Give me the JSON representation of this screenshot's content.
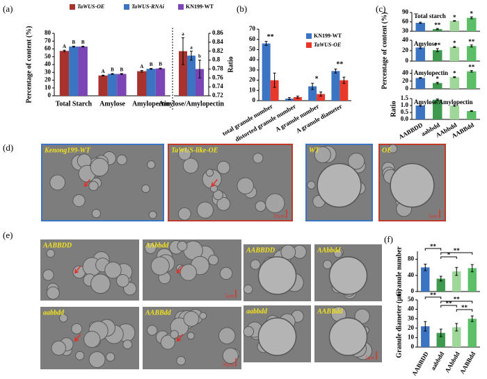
{
  "panels": [
    "(a)",
    "(b)",
    "(c)",
    "(d)",
    "(e)",
    "(f)"
  ],
  "chart_data": [
    {
      "type": "bar",
      "ylabel": "Percentage of content (%)",
      "categories": [
        "Total Starch",
        "Amylose",
        "Amylopectin"
      ],
      "series": [
        {
          "name": "TaWUS-OE",
          "color": "#a8322d",
          "values": [
            57.5,
            26,
            31.5
          ],
          "errors": [
            1,
            0.5,
            1
          ],
          "letters": [
            "A",
            "A",
            "A"
          ]
        },
        {
          "name": "TaWUS-RNAi",
          "color": "#3c74c4",
          "values": [
            63,
            28,
            34.5
          ],
          "errors": [
            0.5,
            0.5,
            0.5
          ],
          "letters": [
            "B",
            "B",
            "B"
          ]
        },
        {
          "name": "KN199-WT",
          "color": "#7b45b5",
          "values": [
            63,
            28,
            35
          ],
          "errors": [
            0.5,
            0.5,
            0.5
          ],
          "letters": [
            "B",
            "B",
            "B"
          ]
        }
      ],
      "ylim": [
        0,
        80
      ],
      "yticks": [
        0,
        10,
        20,
        30,
        40,
        50,
        60,
        70,
        80
      ]
    },
    {
      "type": "bar",
      "ylabel": "Ratio",
      "categories": [
        "Amylose/Amylopectin"
      ],
      "series": [
        {
          "color": "#a8322d",
          "values": [
            0.82
          ],
          "errors": [
            0.03
          ],
          "letters": [
            "a"
          ],
          "axis": "y2"
        },
        {
          "color": "#3c74c4",
          "values": [
            0.81
          ],
          "errors": [
            0.01
          ],
          "letters": [
            "a"
          ],
          "axis": "y2"
        },
        {
          "color": "#7b45b5",
          "values": [
            0.78
          ],
          "errors": [
            0.02
          ],
          "letters": [
            "b"
          ],
          "axis": "y2"
        }
      ],
      "y2lim": [
        0.72,
        0.86
      ],
      "y2ticks": [
        0.72,
        0.74,
        0.76,
        0.78,
        0.8,
        0.82,
        0.84,
        0.86
      ]
    },
    {
      "type": "bar",
      "categories": [
        "total granule number",
        "distorted granule number",
        "A granule number",
        "A granule diameter"
      ],
      "series": [
        {
          "name": "KN199-WT",
          "color": "#3c74c4",
          "values": [
            56,
            2,
            14,
            29
          ],
          "errors": [
            2,
            1,
            3,
            2
          ]
        },
        {
          "name": "TaWUS-OE",
          "color": "#e8382c",
          "values": [
            20,
            3.5,
            6.5,
            20
          ],
          "errors": [
            7,
            1,
            2,
            3
          ]
        }
      ],
      "annotations": [
        "**",
        null,
        "*",
        "**"
      ],
      "ylim": [
        0,
        70
      ],
      "yticks": [
        0,
        10,
        20,
        30,
        40,
        50,
        60,
        70
      ]
    },
    {
      "type": "bar",
      "title": "Total starch",
      "ylabel": "Percentage of content (%)",
      "colors": [
        "#3c74c4",
        "#3e9a4e",
        "#9fd69a",
        "#5cbf68"
      ],
      "values": [
        57,
        37,
        63,
        73
      ],
      "errors": [
        2,
        2,
        1,
        3
      ],
      "annotations": [
        null,
        "**",
        "*",
        "*"
      ],
      "ylim": [
        30,
        90
      ],
      "yticks": [
        30,
        60,
        90
      ]
    },
    {
      "type": "bar",
      "title": "Amylose",
      "colors": [
        "#3c74c4",
        "#3e9a4e",
        "#9fd69a",
        "#5cbf68"
      ],
      "values": [
        26,
        21,
        27,
        29
      ],
      "errors": [
        2,
        3,
        1,
        2
      ],
      "annotations": [
        null,
        "**",
        "*",
        "**"
      ],
      "ylim": [
        0,
        40
      ],
      "yticks": [
        0,
        20,
        40
      ]
    },
    {
      "type": "bar",
      "title": "Amylopectin",
      "colors": [
        "#3c74c4",
        "#3e9a4e",
        "#9fd69a",
        "#5cbf68"
      ],
      "values": [
        28,
        15,
        30,
        45
      ],
      "errors": [
        1,
        2,
        1,
        2
      ],
      "annotations": [
        null,
        "*",
        "*",
        "**"
      ],
      "ylim": [
        0,
        50
      ],
      "yticks": [
        0,
        20,
        40
      ]
    },
    {
      "type": "bar",
      "title": "Amylose/Amylopectin",
      "ylabel": "Ratio",
      "categories": [
        "AABBDD",
        "aabbdd",
        "AAbbdd",
        "AABBdd"
      ],
      "colors": [
        "#3c74c4",
        "#3e9a4e",
        "#9fd69a",
        "#5cbf68"
      ],
      "values": [
        1.0,
        1.42,
        1.0,
        0.6
      ],
      "errors": [
        0.05,
        0.05,
        0.05,
        0.03
      ],
      "ylim": [
        0,
        1.5
      ],
      "yticks": [
        {
          "value": 0,
          "label": "0.0"
        },
        0.5,
        {
          "value": 1,
          "label": "1.0"
        },
        1.5
      ]
    },
    {
      "type": "bar",
      "ylabel": "Granule number",
      "colors": [
        "#3c74c4",
        "#3e9a4e",
        "#9fd69a",
        "#5cbf68"
      ],
      "values": [
        60,
        32,
        50,
        58
      ],
      "errors": [
        8,
        6,
        10,
        9
      ],
      "brackets": [
        {
          "from": 0,
          "to": 1,
          "label": "**"
        },
        {
          "from": 1,
          "to": 3,
          "label": "**"
        },
        {
          "from": 1,
          "to": 2,
          "label": "*"
        }
      ],
      "ylim": [
        0,
        100
      ],
      "yticks": [
        0,
        40,
        80
      ]
    },
    {
      "type": "bar",
      "ylabel": "Granule diameter (μm)",
      "categories": [
        "AABBDD",
        "aabbdd",
        "AAbbdd",
        "AABBdd"
      ],
      "colors": [
        "#3c74c4",
        "#3e9a4e",
        "#9fd69a",
        "#5cbf68"
      ],
      "values": [
        22,
        15,
        21,
        30
      ],
      "errors": [
        5,
        4,
        4,
        3
      ],
      "brackets": [
        {
          "from": 0,
          "to": 1,
          "label": "**"
        },
        {
          "from": 1,
          "to": 3,
          "label": "**"
        },
        {
          "from": 1,
          "to": 2,
          "label": "**"
        },
        {
          "from": 2,
          "to": 3,
          "label": "**"
        }
      ],
      "ylim": [
        0,
        50
      ],
      "yticks": [
        0,
        10,
        20,
        30,
        40,
        50
      ]
    }
  ],
  "micrographs": [
    {
      "label": "Kenong199-WT"
    },
    {
      "label": "TaWUS-like-OE",
      "scale": "20μm"
    },
    {
      "label": "WT"
    },
    {
      "label": "OE",
      "scale": "5μm"
    },
    {
      "label": "AABBDD"
    },
    {
      "label": "AAbbdd",
      "scale": "5μm"
    },
    {
      "label": "aabbdd"
    },
    {
      "label": "AABBdd",
      "scale": "20μm"
    },
    {
      "label": "AABBDD"
    },
    {
      "label": "AAbbdd"
    },
    {
      "label": "aabbdd"
    },
    {
      "label": "AABBdd",
      "scale": "5μm"
    }
  ]
}
